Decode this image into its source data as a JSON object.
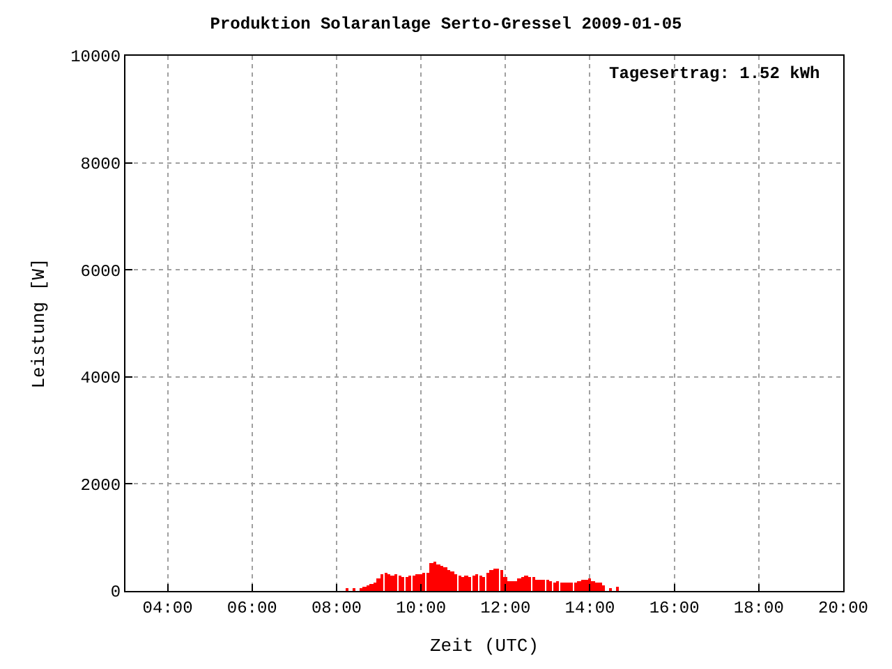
{
  "chart_data": {
    "type": "bar",
    "title": "Produktion Solaranlage Serto-Gressel 2009-01-05",
    "xlabel": "Zeit (UTC)",
    "ylabel": "Leistung [W]",
    "annotations": [
      "Tagesertrag: 1.52 kWh"
    ],
    "x": [
      8.25,
      8.42,
      8.58,
      8.67,
      8.75,
      8.83,
      8.92,
      9.0,
      9.08,
      9.17,
      9.25,
      9.33,
      9.42,
      9.5,
      9.58,
      9.67,
      9.75,
      9.83,
      9.92,
      10.0,
      10.08,
      10.17,
      10.25,
      10.33,
      10.42,
      10.5,
      10.58,
      10.67,
      10.75,
      10.83,
      10.92,
      11.0,
      11.08,
      11.17,
      11.25,
      11.33,
      11.42,
      11.5,
      11.58,
      11.67,
      11.75,
      11.83,
      11.92,
      12.0,
      12.08,
      12.17,
      12.25,
      12.33,
      12.42,
      12.5,
      12.58,
      12.67,
      12.75,
      12.83,
      12.92,
      13.0,
      13.08,
      13.17,
      13.25,
      13.33,
      13.42,
      13.5,
      13.58,
      13.67,
      13.75,
      13.83,
      13.92,
      14.0,
      14.08,
      14.17,
      14.25,
      14.33,
      14.5,
      14.67
    ],
    "values": [
      50,
      50,
      50,
      75,
      100,
      125,
      150,
      225,
      300,
      340,
      300,
      290,
      325,
      280,
      250,
      250,
      275,
      275,
      300,
      320,
      340,
      350,
      520,
      550,
      500,
      475,
      450,
      400,
      375,
      325,
      275,
      250,
      275,
      250,
      275,
      300,
      275,
      250,
      350,
      400,
      425,
      425,
      400,
      250,
      175,
      175,
      175,
      225,
      250,
      275,
      250,
      250,
      200,
      200,
      200,
      200,
      175,
      150,
      175,
      150,
      150,
      150,
      150,
      150,
      175,
      200,
      200,
      225,
      175,
      150,
      150,
      100,
      50,
      75
    ],
    "color": "#ff0000",
    "xlim": [
      3,
      20
    ],
    "xticks": [
      {
        "value": 4,
        "label": "04:00"
      },
      {
        "value": 6,
        "label": "06:00"
      },
      {
        "value": 8,
        "label": "08:00"
      },
      {
        "value": 10,
        "label": "10:00"
      },
      {
        "value": 12,
        "label": "12:00"
      },
      {
        "value": 14,
        "label": "14:00"
      },
      {
        "value": 16,
        "label": "16:00"
      },
      {
        "value": 18,
        "label": "18:00"
      },
      {
        "value": 20,
        "label": "20:00"
      }
    ],
    "ylim": [
      0,
      10000
    ],
    "yticks": [
      0,
      2000,
      4000,
      6000,
      8000,
      10000
    ],
    "grid": true
  }
}
